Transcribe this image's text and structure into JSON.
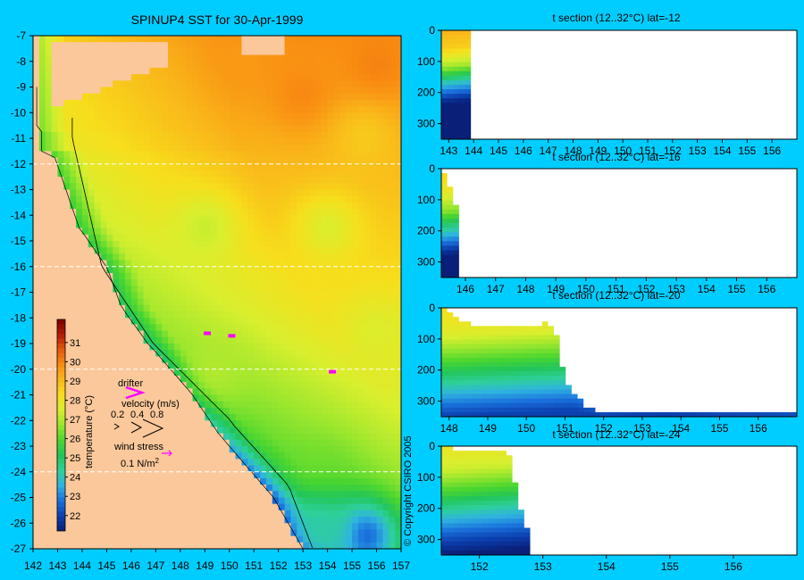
{
  "colors": {
    "background": "#00cdff",
    "land": "#fbc89b",
    "blank": "#ffffff"
  },
  "colormap": [
    "#0a1f78",
    "#0b3fae",
    "#1a72dd",
    "#2fb3e0",
    "#2ed09a",
    "#22c55a",
    "#4bd62f",
    "#98e62e",
    "#d8ef2e",
    "#f7de1c",
    "#f9b81a",
    "#f98c12",
    "#e25a0a",
    "#b3190a",
    "#7a0000"
  ],
  "copyright": "© Copyright CSIRO 2005",
  "chart_data": [
    {
      "type": "heatmap",
      "title": "SPINUP4 SST for 30-Apr-1999",
      "xlim": [
        142,
        157
      ],
      "ylim": [
        -27,
        -7
      ],
      "x_ticks": [
        142,
        143,
        144,
        145,
        146,
        147,
        148,
        149,
        150,
        151,
        152,
        153,
        154,
        155,
        156,
        157
      ],
      "y_ticks": [
        -7,
        -8,
        -9,
        -10,
        -11,
        -12,
        -13,
        -14,
        -15,
        -16,
        -17,
        -18,
        -19,
        -20,
        -21,
        -22,
        -23,
        -24,
        -25,
        -26,
        -27
      ],
      "section_latitudes": [
        -12,
        -16,
        -20,
        -24
      ],
      "colorbar": {
        "label": "temperature (°C)",
        "vmin": 21.2,
        "vmax": 32.2,
        "ticks": [
          22,
          23,
          24,
          25,
          26,
          27,
          28,
          29,
          30,
          31
        ]
      },
      "legend": {
        "drifter_label": "drifter",
        "velocity_label": "velocity (m/s)",
        "velocity_values": [
          "0.2",
          "0.4",
          "0.8"
        ],
        "wind_label": "wind stress",
        "wind_value": "0.1 N/m",
        "wind_exp": "2"
      },
      "drifters": [
        [
          149.1,
          -18.6
        ],
        [
          150.1,
          -18.7
        ],
        [
          154.2,
          -20.1
        ]
      ],
      "sst_field": {
        "base": 26.8,
        "offshore_gain": 0.18,
        "north_gain": 0.16,
        "pockets": [
          {
            "lon": 150.5,
            "lat": -8.0,
            "value": 29.6
          },
          {
            "lon": 153.0,
            "lat": -9.3,
            "value": 29.9
          },
          {
            "lon": 156.0,
            "lat": -8.3,
            "value": 30.0
          },
          {
            "lon": 155.5,
            "lat": -11.0,
            "value": 28.7
          },
          {
            "lon": 149.0,
            "lat": -14.5,
            "value": 27.3
          },
          {
            "lon": 154.0,
            "lat": -14.5,
            "value": 27.6
          },
          {
            "lon": 156.0,
            "lat": -18.5,
            "value": 27.6
          },
          {
            "lon": 149.5,
            "lat": -20.0,
            "value": 27.0
          },
          {
            "lon": 154.0,
            "lat": -24.0,
            "value": 26.3
          },
          {
            "lon": 155.5,
            "lat": -26.5,
            "value": 22.5
          },
          {
            "lon": 153.7,
            "lat": -26.2,
            "value": 24.2
          }
        ]
      }
    },
    {
      "type": "heatmap",
      "title": "t section (12..32°C) lat=-12",
      "latitude": -12,
      "xlim": [
        142.7,
        157.0
      ],
      "x_ticks": [
        143,
        144,
        145,
        146,
        147,
        148,
        149,
        150,
        151,
        152,
        153,
        154,
        155,
        156
      ],
      "ylim": [
        0,
        350
      ],
      "y_ticks": [
        0,
        100,
        200,
        300
      ],
      "profile": [
        {
          "depth": 0,
          "temp": 29.2
        },
        {
          "depth": 60,
          "temp": 28.6
        },
        {
          "depth": 120,
          "temp": 26.8
        },
        {
          "depth": 170,
          "temp": 24.0
        },
        {
          "depth": 230,
          "temp": 21.5
        },
        {
          "depth": 300,
          "temp": 19.2
        },
        {
          "depth": 350,
          "temp": 18.0
        }
      ],
      "surface_warm": [
        {
          "lon": 155.8,
          "delta": 0.5,
          "radius": 1.2
        }
      ],
      "thermocline": [
        [
          142.7,
          0
        ],
        [
          144.0,
          10
        ],
        [
          145.2,
          25
        ],
        [
          146.0,
          -40
        ],
        [
          146.8,
          5
        ],
        [
          148.0,
          15
        ],
        [
          151.0,
          8
        ],
        [
          154.0,
          5
        ],
        [
          157.0,
          0
        ]
      ],
      "bathymetry": [
        [
          142.7,
          0
        ],
        [
          143.9,
          0
        ],
        [
          143.95,
          110
        ],
        [
          144.0,
          350
        ],
        [
          157.0,
          350
        ]
      ],
      "gap_columns": []
    },
    {
      "type": "heatmap",
      "title": "t section (12..32°C) lat=-16",
      "latitude": -16,
      "xlim": [
        145.2,
        157.0
      ],
      "x_ticks": [
        146,
        147,
        148,
        149,
        150,
        151,
        152,
        153,
        154,
        155,
        156
      ],
      "ylim": [
        0,
        350
      ],
      "y_ticks": [
        0,
        100,
        200,
        300
      ],
      "profile": [
        {
          "depth": 0,
          "temp": 28.6
        },
        {
          "depth": 70,
          "temp": 28.0
        },
        {
          "depth": 140,
          "temp": 26.5
        },
        {
          "depth": 200,
          "temp": 24.2
        },
        {
          "depth": 260,
          "temp": 22.0
        },
        {
          "depth": 320,
          "temp": 19.8
        },
        {
          "depth": 350,
          "temp": 19.0
        }
      ],
      "surface_warm": [
        {
          "lon": 156.2,
          "delta": 0.6,
          "radius": 1.0
        }
      ],
      "thermocline": [
        [
          145.2,
          0
        ],
        [
          146.5,
          15
        ],
        [
          149.0,
          10
        ],
        [
          151.0,
          20
        ],
        [
          153.0,
          10
        ],
        [
          157.0,
          0
        ]
      ],
      "bathymetry": [
        [
          145.2,
          0
        ],
        [
          145.4,
          20
        ],
        [
          145.7,
          120
        ],
        [
          145.75,
          350
        ],
        [
          157.0,
          350
        ]
      ],
      "gap_columns": [
        {
          "lon": 149.65,
          "top": 175
        }
      ]
    },
    {
      "type": "heatmap",
      "title": "t section (12..32°C) lat=-20",
      "latitude": -20,
      "xlim": [
        147.8,
        157.0
      ],
      "x_ticks": [
        148,
        149,
        150,
        151,
        152,
        153,
        154,
        155,
        156
      ],
      "ylim": [
        0,
        350
      ],
      "y_ticks": [
        0,
        100,
        200,
        300
      ],
      "profile": [
        {
          "depth": 0,
          "temp": 28.3
        },
        {
          "depth": 90,
          "temp": 27.6
        },
        {
          "depth": 170,
          "temp": 26.0
        },
        {
          "depth": 250,
          "temp": 24.2
        },
        {
          "depth": 320,
          "temp": 22.6
        },
        {
          "depth": 350,
          "temp": 22.0
        }
      ],
      "surface_warm": [
        {
          "lon": 155.5,
          "delta": 0.4,
          "radius": 1.6
        }
      ],
      "thermocline": [
        [
          147.8,
          0
        ],
        [
          151.2,
          20
        ],
        [
          152.0,
          0
        ],
        [
          153.5,
          10
        ],
        [
          155.0,
          0
        ],
        [
          157.0,
          -5
        ]
      ],
      "bathymetry": [
        [
          147.8,
          0
        ],
        [
          148.0,
          10
        ],
        [
          148.5,
          50
        ],
        [
          149.0,
          65
        ],
        [
          149.5,
          50
        ],
        [
          150.0,
          65
        ],
        [
          150.5,
          45
        ],
        [
          150.8,
          90
        ],
        [
          151.0,
          220
        ],
        [
          151.2,
          270
        ],
        [
          151.5,
          310
        ],
        [
          151.8,
          330
        ],
        [
          157.0,
          340
        ]
      ],
      "gap_columns": []
    },
    {
      "type": "heatmap",
      "title": "t section (12..32°C) lat=-24",
      "latitude": -24,
      "xlim": [
        151.4,
        157.0
      ],
      "x_ticks": [
        152,
        153,
        154,
        155,
        156
      ],
      "ylim": [
        0,
        350
      ],
      "y_ticks": [
        0,
        100,
        200,
        300
      ],
      "profile": [
        {
          "depth": 0,
          "temp": 28.0
        },
        {
          "depth": 80,
          "temp": 27.3
        },
        {
          "depth": 150,
          "temp": 25.8
        },
        {
          "depth": 220,
          "temp": 24.0
        },
        {
          "depth": 290,
          "temp": 22.4
        },
        {
          "depth": 350,
          "temp": 21.2
        }
      ],
      "surface_warm": [
        {
          "lon": 155.0,
          "delta": 0.4,
          "radius": 2.0
        }
      ],
      "thermocline": [
        [
          151.4,
          0
        ],
        [
          153.0,
          25
        ],
        [
          153.6,
          -10
        ],
        [
          154.5,
          0
        ],
        [
          157.0,
          0
        ]
      ],
      "bathymetry": [
        [
          151.4,
          0
        ],
        [
          151.6,
          10
        ],
        [
          152.0,
          20
        ],
        [
          152.4,
          20
        ],
        [
          152.5,
          40
        ],
        [
          152.6,
          150
        ],
        [
          152.7,
          230
        ],
        [
          152.8,
          300
        ],
        [
          152.85,
          350
        ],
        [
          157.0,
          350
        ]
      ],
      "gap_columns": []
    }
  ]
}
